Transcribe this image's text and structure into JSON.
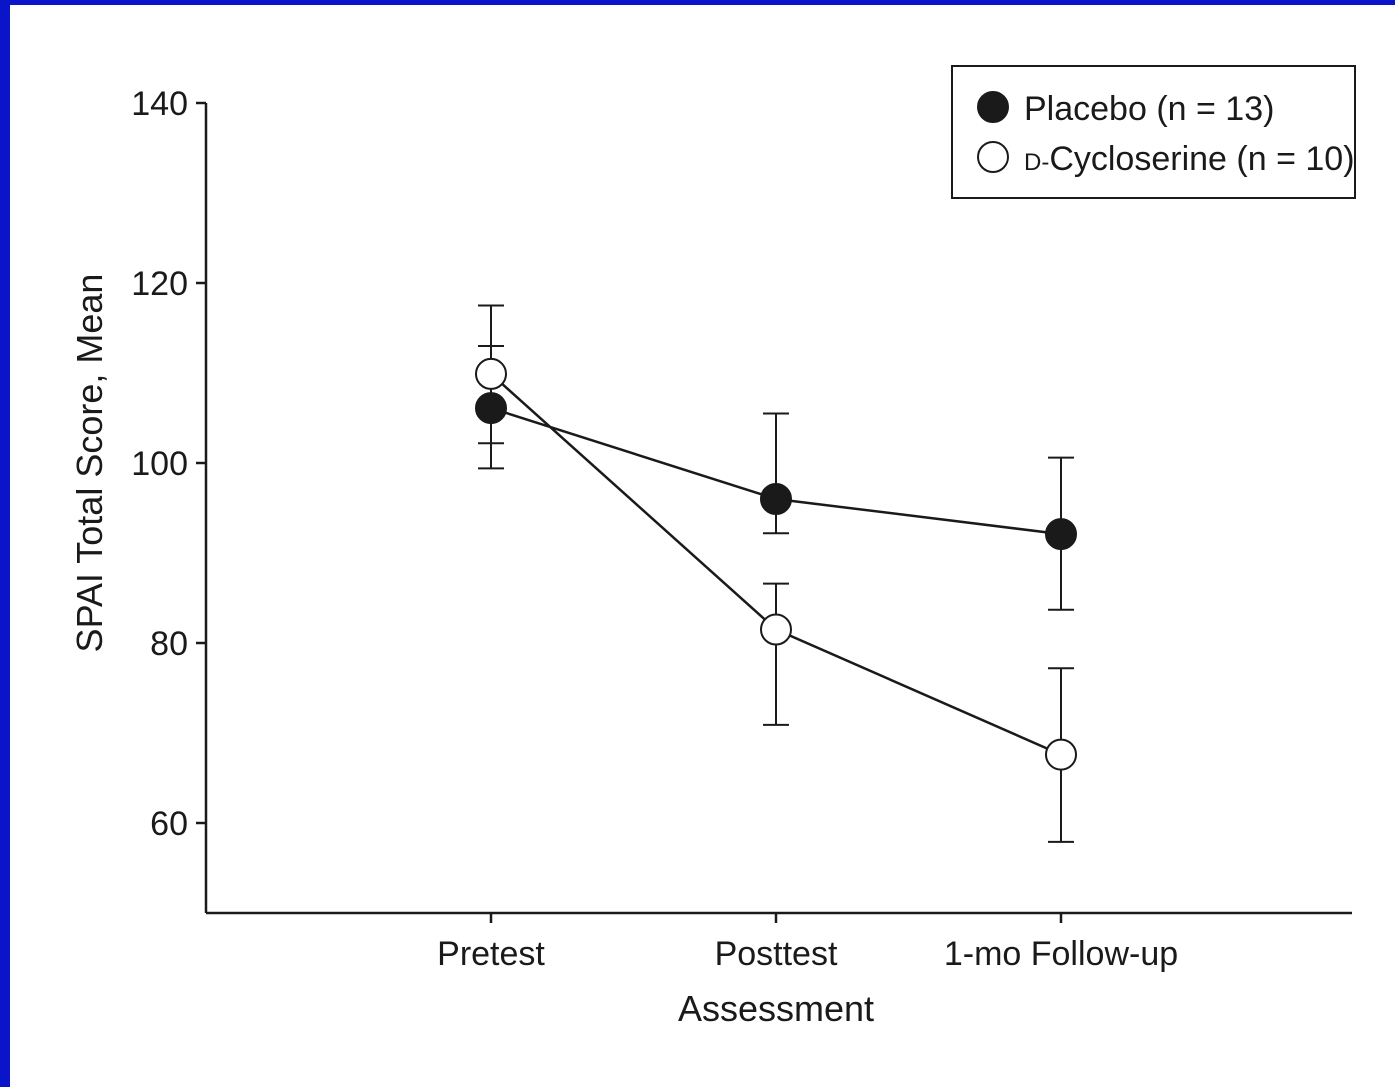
{
  "chart_data": {
    "type": "line",
    "categories": [
      "Pretest",
      "Posttest",
      "1-mo Follow-up"
    ],
    "xlabel": "Assessment",
    "ylabel": "SPAI Total Score, Mean",
    "ylim": [
      50,
      140
    ],
    "yticks": [
      "140",
      "120",
      "100",
      "80",
      "60"
    ],
    "ytick_values": [
      140,
      120,
      100,
      80,
      60
    ],
    "legend_position": "top-right",
    "series": [
      {
        "name": "Placebo (n = 13)",
        "marker": "filled-circle",
        "color": "#1a1a1a",
        "values": [
          106.1,
          96.0,
          92.1
        ],
        "error_low": [
          99.4,
          92.2,
          83.7
        ],
        "error_high": [
          113.0,
          105.5,
          100.6
        ]
      },
      {
        "name": "Cycloserine (n = 10)",
        "name_prefix": "D-",
        "marker": "open-circle",
        "color": "#ffffff",
        "values": [
          109.9,
          81.5,
          67.6
        ],
        "error_low": [
          102.2,
          70.9,
          57.9
        ],
        "error_high": [
          117.5,
          86.6,
          77.2
        ]
      }
    ]
  }
}
